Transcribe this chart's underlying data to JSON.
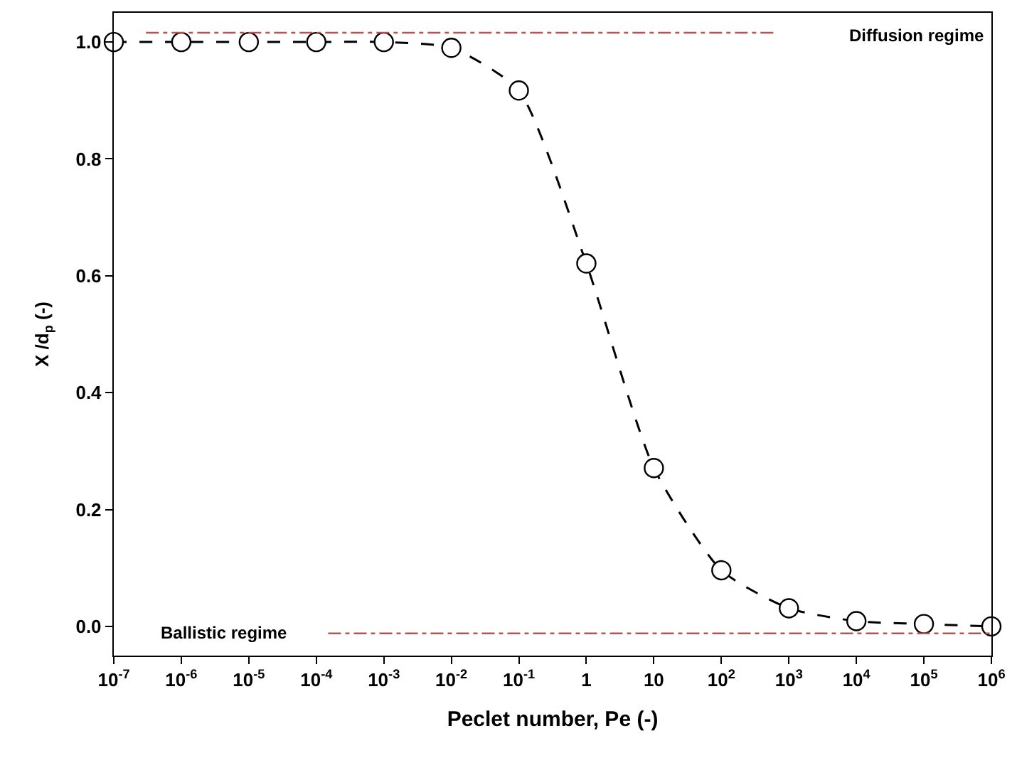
{
  "chart_data": {
    "type": "line",
    "xlabel": "Peclet number, Pe (-)",
    "ylabel": "X /d$_{p}$ (-)",
    "log": "x",
    "xlim": [
      1e-07,
      1000000.0
    ],
    "ylim": [
      -0.05,
      1.05
    ],
    "xticks": [
      {
        "value": 1e-07,
        "label": "10$^{-7}$"
      },
      {
        "value": 1e-06,
        "label": "10$^{-6}$"
      },
      {
        "value": 1e-05,
        "label": "10$^{-5}$"
      },
      {
        "value": 0.0001,
        "label": "10$^{-4}$"
      },
      {
        "value": 0.001,
        "label": "10$^{-3}$"
      },
      {
        "value": 0.01,
        "label": "10$^{-2}$"
      },
      {
        "value": 0.1,
        "label": "10$^{-1}$"
      },
      1,
      10,
      {
        "value": 100,
        "label": "10$^{2}$"
      },
      {
        "value": 1000,
        "label": "10$^{3}$"
      },
      {
        "value": 10000,
        "label": "10$^{4}$"
      },
      {
        "value": 100000,
        "label": "10$^{5}$"
      },
      {
        "value": 1000000,
        "label": "10$^{6}$"
      }
    ],
    "yticks": [
      {
        "value": 0,
        "label": "0.0"
      },
      0.2,
      0.4,
      0.6,
      0.8,
      {
        "value": 1,
        "label": "1.0"
      }
    ],
    "series": [
      {
        "color": "#000000",
        "marker": "circle",
        "line_style": "dashed",
        "x": [
          1e-07,
          1e-06,
          1e-05,
          0.0001,
          0.001,
          0.01,
          0.1,
          1,
          10,
          100,
          1000,
          10000,
          100000,
          1000000
        ],
        "values": [
          1.0,
          1.0,
          1.0,
          1.0,
          1.0,
          0.99,
          0.917,
          0.621,
          0.271,
          0.096,
          0.031,
          0.009,
          0.004,
          0.0
        ]
      },
      {
        "color": "#c0504d",
        "marker": "none",
        "line_style": "dashdot",
        "x": [
          3e-07,
          600
        ],
        "values": [
          1.016,
          1.016
        ]
      },
      {
        "color": "#c0504d",
        "marker": "none",
        "line_style": "dashdot",
        "x": [
          0.00015,
          1000000
        ],
        "values": [
          -0.012,
          -0.012
        ]
      }
    ],
    "annotations": [
      "Diffusion regime",
      "Ballistic regime"
    ]
  }
}
